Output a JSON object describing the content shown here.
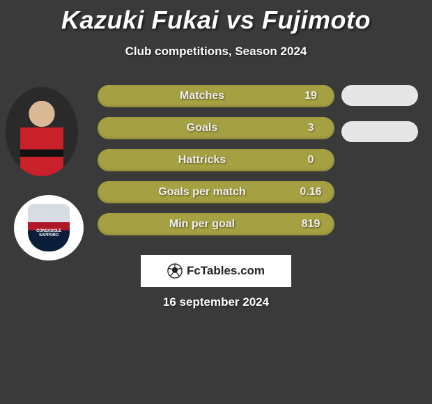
{
  "title": "Kazuki Fukai vs Fujimoto",
  "subtitle": "Club competitions, Season 2024",
  "date": "16 september 2024",
  "footer_brand": "FcTables.com",
  "colors": {
    "background": "#3a3a3a",
    "bar_fill": "#a5a041",
    "pill_bg": "#e6e6e6",
    "text": "#ffffff"
  },
  "stats": [
    {
      "label": "Matches",
      "value": "19"
    },
    {
      "label": "Goals",
      "value": "3"
    },
    {
      "label": "Hattricks",
      "value": "0"
    },
    {
      "label": "Goals per match",
      "value": "0.16"
    },
    {
      "label": "Min per goal",
      "value": "819"
    }
  ],
  "right_pills": [
    {
      "bg": "#e6e6e6"
    },
    {
      "bg": "#e6e6e6"
    }
  ],
  "club_badge_text": "CONSADOLE SAPPORO"
}
